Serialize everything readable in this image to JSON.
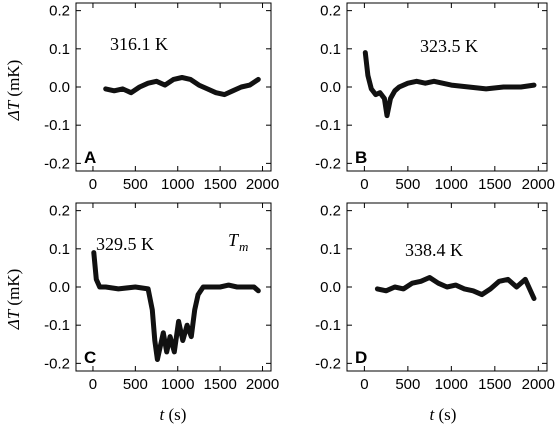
{
  "figure": {
    "ylabel_symbol": "ΔT",
    "ylabel_unit": " (mK)",
    "xlabel_symbol": "t",
    "xlabel_unit": " (s)"
  },
  "chart_data": [
    {
      "type": "line",
      "panel_label": "A",
      "annotation": "316.1 K",
      "xlim": [
        -200,
        2100
      ],
      "ylim": [
        -0.22,
        0.22
      ],
      "x_ticks": [
        "0",
        "500",
        "1000",
        "1500",
        "2000"
      ],
      "y_ticks": [
        "0.2",
        "0.1",
        "0.0",
        "-0.1",
        "-0.2"
      ],
      "series": [
        {
          "x": [
            150,
            250,
            350,
            450,
            550,
            650,
            750,
            850,
            950,
            1050,
            1150,
            1250,
            1350,
            1450,
            1550,
            1650,
            1750,
            1850,
            1950
          ],
          "y": [
            -0.005,
            -0.01,
            -0.005,
            -0.015,
            0.0,
            0.01,
            0.015,
            0.005,
            0.02,
            0.025,
            0.02,
            0.005,
            -0.005,
            -0.015,
            -0.02,
            -0.01,
            0.0,
            0.005,
            0.02
          ]
        }
      ]
    },
    {
      "type": "line",
      "panel_label": "B",
      "annotation": "323.5 K",
      "xlim": [
        -200,
        2100
      ],
      "ylim": [
        -0.22,
        0.22
      ],
      "x_ticks": [
        "0",
        "500",
        "1000",
        "1500",
        "2000"
      ],
      "y_ticks": [
        "0.2",
        "0.1",
        "0.0",
        "-0.1",
        "-0.2"
      ],
      "series": [
        {
          "x": [
            10,
            40,
            80,
            130,
            180,
            230,
            260,
            300,
            350,
            400,
            500,
            600,
            700,
            800,
            1000,
            1200,
            1400,
            1600,
            1800,
            1950
          ],
          "y": [
            0.09,
            0.03,
            -0.005,
            -0.02,
            -0.015,
            -0.03,
            -0.075,
            -0.03,
            -0.01,
            0.0,
            0.01,
            0.015,
            0.01,
            0.015,
            0.005,
            0.0,
            -0.005,
            0.0,
            0.0,
            0.005
          ]
        }
      ]
    },
    {
      "type": "line",
      "panel_label": "C",
      "annotation": "329.5 K",
      "annotation2": "T",
      "annotation2_sub": "m",
      "xlim": [
        -200,
        2100
      ],
      "ylim": [
        -0.22,
        0.22
      ],
      "x_ticks": [
        "0",
        "500",
        "1000",
        "1500",
        "2000"
      ],
      "y_ticks": [
        "0.2",
        "0.1",
        "0.0",
        "-0.1",
        "-0.2"
      ],
      "series": [
        {
          "x": [
            10,
            40,
            80,
            150,
            300,
            500,
            650,
            700,
            730,
            760,
            790,
            830,
            870,
            910,
            960,
            1010,
            1060,
            1110,
            1160,
            1200,
            1240,
            1300,
            1400,
            1500,
            1600,
            1700,
            1800,
            1900,
            1950
          ],
          "y": [
            0.09,
            0.02,
            0.0,
            0.0,
            -0.005,
            0.0,
            -0.005,
            -0.06,
            -0.14,
            -0.19,
            -0.16,
            -0.12,
            -0.17,
            -0.13,
            -0.17,
            -0.09,
            -0.14,
            -0.1,
            -0.13,
            -0.06,
            -0.02,
            0.0,
            0.0,
            0.0,
            0.005,
            0.0,
            0.0,
            0.0,
            -0.01
          ]
        }
      ]
    },
    {
      "type": "line",
      "panel_label": "D",
      "annotation": "338.4 K",
      "xlim": [
        -200,
        2100
      ],
      "ylim": [
        -0.22,
        0.22
      ],
      "x_ticks": [
        "0",
        "500",
        "1000",
        "1500",
        "2000"
      ],
      "y_ticks": [
        "0.2",
        "0.1",
        "0.0",
        "-0.1",
        "-0.2"
      ],
      "series": [
        {
          "x": [
            150,
            250,
            350,
            450,
            550,
            650,
            750,
            850,
            950,
            1050,
            1150,
            1250,
            1350,
            1450,
            1550,
            1650,
            1750,
            1850,
            1950
          ],
          "y": [
            -0.005,
            -0.01,
            0.0,
            -0.005,
            0.01,
            0.015,
            0.025,
            0.01,
            0.0,
            0.005,
            -0.005,
            -0.01,
            -0.02,
            -0.005,
            0.015,
            0.02,
            0.0,
            0.02,
            -0.03
          ]
        }
      ]
    }
  ]
}
